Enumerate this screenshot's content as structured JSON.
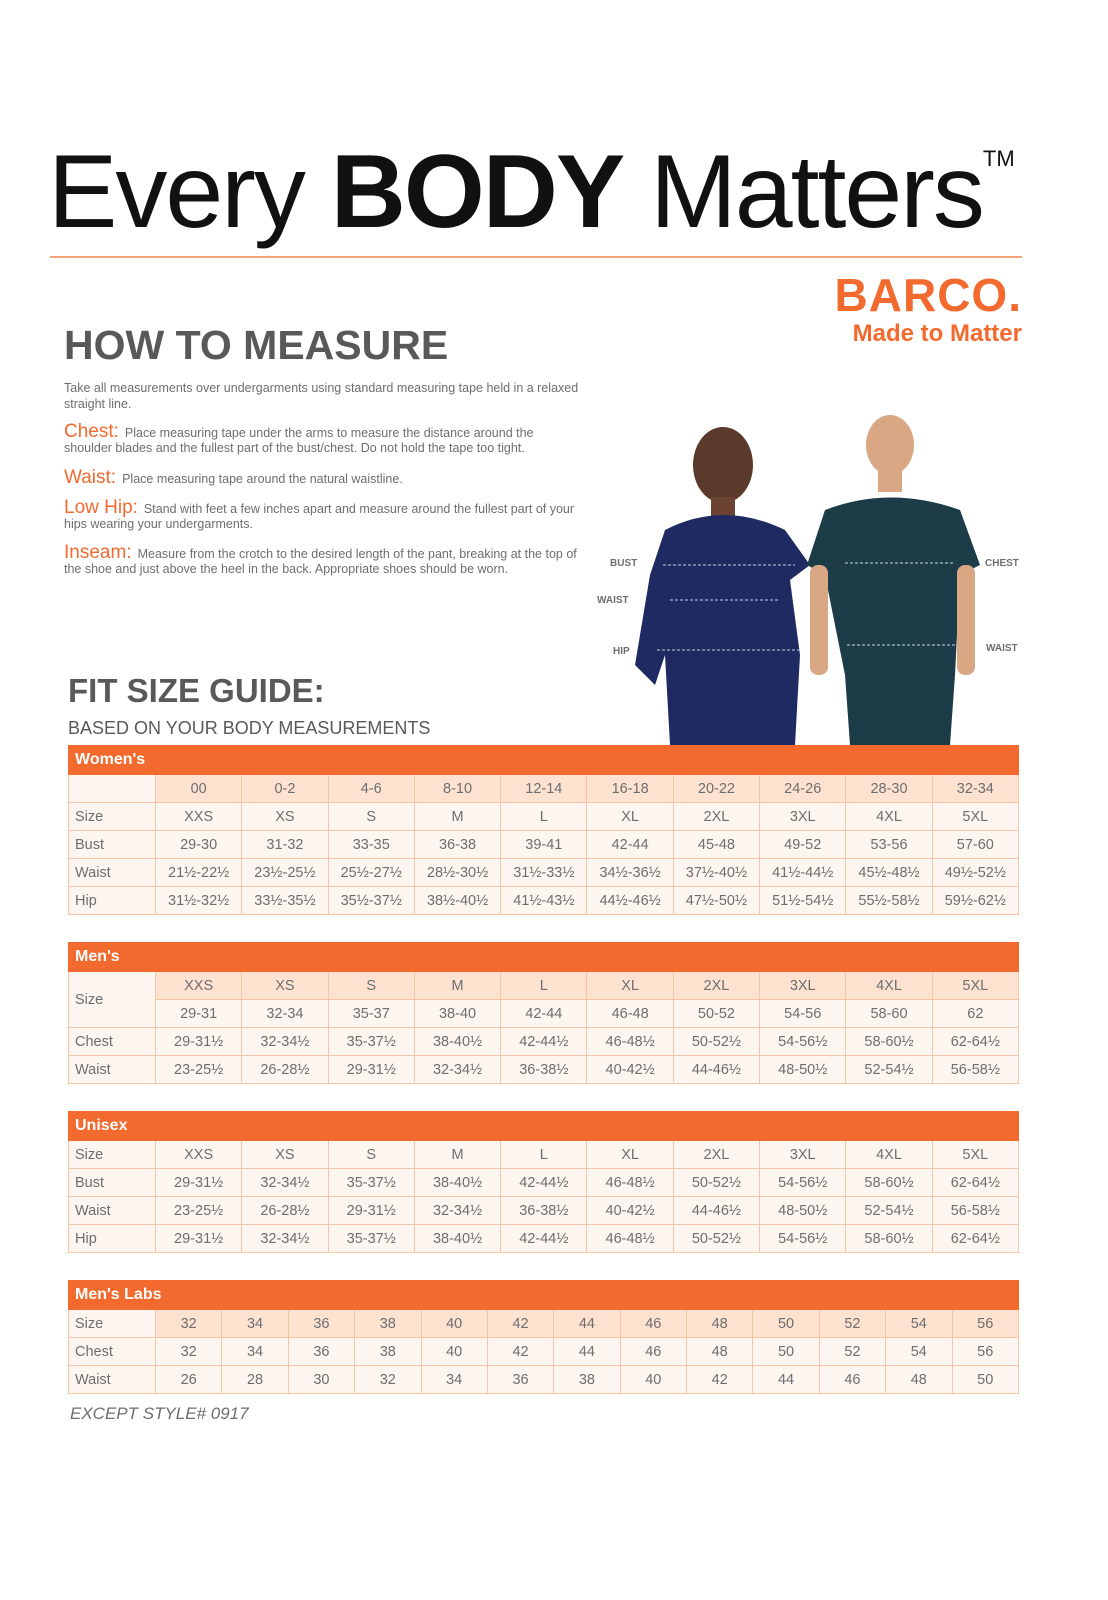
{
  "header": {
    "title_pre": "Every",
    "title_bold": "BODY",
    "title_post": "Matters",
    "trademark": "TM"
  },
  "brand": {
    "logo": "BARCO.",
    "tagline": "Made to Matter",
    "color": "#f26a2e"
  },
  "how_to_measure": {
    "heading": "HOW TO MEASURE",
    "intro": "Take all measurements over undergarments using standard measuring tape held in a relaxed straight line.",
    "terms": [
      {
        "label": "Chest:",
        "text": "Place measuring tape under the arms to measure the distance around the shoulder blades and the fullest part of the bust/chest. Do not hold the tape too tight."
      },
      {
        "label": "Waist:",
        "text": "Place measuring tape around the natural waistline."
      },
      {
        "label": "Low Hip:",
        "text": "Stand with feet a few inches apart and measure around the fullest part of your hips wearing your undergarments."
      },
      {
        "label": "Inseam:",
        "text": "Measure from the crotch to the desired length of the pant, breaking at the top of the shoe and just above the heel in the back. Appropriate shoes should be worn."
      }
    ]
  },
  "photo_labels": {
    "bust": "BUST",
    "waist_left": "WAIST",
    "hip": "HIP",
    "chest": "CHEST",
    "waist_right": "WAIST"
  },
  "fit_guide": {
    "heading": "FIT SIZE GUIDE:",
    "subheading": "BASED ON YOUR BODY MEASUREMENTS"
  },
  "tables": [
    {
      "title": "Women's",
      "rows": [
        {
          "label": "",
          "cells": [
            "00",
            "0-2",
            "4-6",
            "8-10",
            "12-14",
            "16-18",
            "20-22",
            "24-26",
            "28-30",
            "32-34"
          ],
          "dark": true
        },
        {
          "label": "Size",
          "cells": [
            "XXS",
            "XS",
            "S",
            "M",
            "L",
            "XL",
            "2XL",
            "3XL",
            "4XL",
            "5XL"
          ]
        },
        {
          "label": "Bust",
          "cells": [
            "29-30",
            "31-32",
            "33-35",
            "36-38",
            "39-41",
            "42-44",
            "45-48",
            "49-52",
            "53-56",
            "57-60"
          ]
        },
        {
          "label": "Waist",
          "cells": [
            "21½-22½",
            "23½-25½",
            "25½-27½",
            "28½-30½",
            "31½-33½",
            "34½-36½",
            "37½-40½",
            "41½-44½",
            "45½-48½",
            "49½-52½"
          ]
        },
        {
          "label": "Hip",
          "cells": [
            "31½-32½",
            "33½-35½",
            "35½-37½",
            "38½-40½",
            "41½-43½",
            "44½-46½",
            "47½-50½",
            "51½-54½",
            "55½-58½",
            "59½-62½"
          ]
        }
      ]
    },
    {
      "title": "Men's",
      "rows": [
        {
          "label": "Size",
          "span": 2,
          "cells": [
            "XXS",
            "XS",
            "S",
            "M",
            "L",
            "XL",
            "2XL",
            "3XL",
            "4XL",
            "5XL"
          ],
          "dark": true
        },
        {
          "label": null,
          "cells": [
            "29-31",
            "32-34",
            "35-37",
            "38-40",
            "42-44",
            "46-48",
            "50-52",
            "54-56",
            "58-60",
            "62"
          ]
        },
        {
          "label": "Chest",
          "cells": [
            "29-31½",
            "32-34½",
            "35-37½",
            "38-40½",
            "42-44½",
            "46-48½",
            "50-52½",
            "54-56½",
            "58-60½",
            "62-64½"
          ]
        },
        {
          "label": "Waist",
          "cells": [
            "23-25½",
            "26-28½",
            "29-31½",
            "32-34½",
            "36-38½",
            "40-42½",
            "44-46½",
            "48-50½",
            "52-54½",
            "56-58½"
          ]
        }
      ]
    },
    {
      "title": "Unisex",
      "rows": [
        {
          "label": "Size",
          "cells": [
            "XXS",
            "XS",
            "S",
            "M",
            "L",
            "XL",
            "2XL",
            "3XL",
            "4XL",
            "5XL"
          ]
        },
        {
          "label": "Bust",
          "cells": [
            "29-31½",
            "32-34½",
            "35-37½",
            "38-40½",
            "42-44½",
            "46-48½",
            "50-52½",
            "54-56½",
            "58-60½",
            "62-64½"
          ]
        },
        {
          "label": "Waist",
          "cells": [
            "23-25½",
            "26-28½",
            "29-31½",
            "32-34½",
            "36-38½",
            "40-42½",
            "44-46½",
            "48-50½",
            "52-54½",
            "56-58½"
          ]
        },
        {
          "label": "Hip",
          "cells": [
            "29-31½",
            "32-34½",
            "35-37½",
            "38-40½",
            "42-44½",
            "46-48½",
            "50-52½",
            "54-56½",
            "58-60½",
            "62-64½"
          ]
        }
      ]
    },
    {
      "title": "Men's Labs",
      "rows": [
        {
          "label": "Size",
          "cells": [
            "32",
            "34",
            "36",
            "38",
            "40",
            "42",
            "44",
            "46",
            "48",
            "50",
            "52",
            "54",
            "56"
          ],
          "dark": true
        },
        {
          "label": "Chest",
          "cells": [
            "32",
            "34",
            "36",
            "38",
            "40",
            "42",
            "44",
            "46",
            "48",
            "50",
            "52",
            "54",
            "56"
          ]
        },
        {
          "label": "Waist",
          "cells": [
            "26",
            "28",
            "30",
            "32",
            "34",
            "36",
            "38",
            "40",
            "42",
            "44",
            "46",
            "48",
            "50"
          ]
        }
      ]
    }
  ],
  "footnote": "EXCEPT STYLE# 0917"
}
